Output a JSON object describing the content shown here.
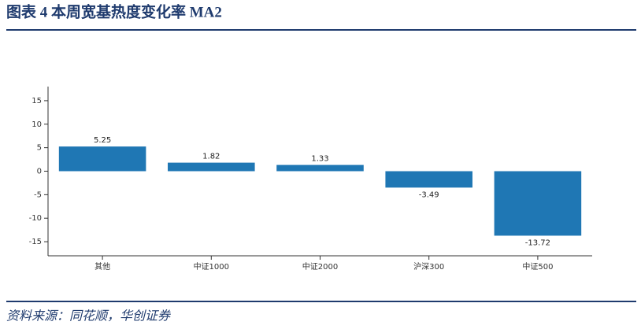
{
  "header": {
    "title": "图表 4  本周宽基热度变化率 MA2"
  },
  "chart_data": {
    "type": "bar",
    "categories": [
      "其他",
      "中证1000",
      "中证2000",
      "沪深300",
      "中证500"
    ],
    "values": [
      5.25,
      1.82,
      1.33,
      -3.49,
      -13.72
    ],
    "color": "#1f77b4",
    "ylim": [
      -18,
      18
    ],
    "yticks": [
      -15,
      -10,
      -5,
      0,
      5,
      10,
      15
    ]
  },
  "footer": {
    "source": "资料来源：同花顺，华创证券"
  }
}
